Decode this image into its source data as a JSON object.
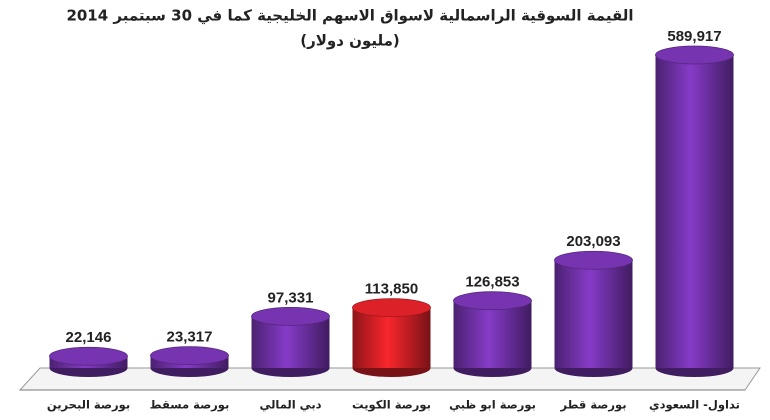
{
  "chart_data": {
    "type": "bar",
    "title": "القيمة السوقية الراسمالية لاسواق الاسهم الخليجية كما في 30 سبتمبر 2014",
    "subtitle": "(مليون دولار)",
    "categories": [
      "بورصة البحرين",
      "بورصة مسقط",
      "دبي المالي",
      "بورصة الكويت",
      "بورصة ابو ظبي",
      "بورصة قطر",
      "تداول- السعودي"
    ],
    "values": [
      22146,
      23317,
      97331,
      113850,
      126853,
      203093,
      589917
    ],
    "value_labels": [
      "22,146",
      "23,317",
      "97,331",
      "113,850",
      "126,853",
      "203,093",
      "589,917"
    ],
    "colors": [
      "#6b2fa0",
      "#6b2fa0",
      "#6b2fa0",
      "#c81e24",
      "#6b2fa0",
      "#6b2fa0",
      "#6b2fa0"
    ]
  }
}
